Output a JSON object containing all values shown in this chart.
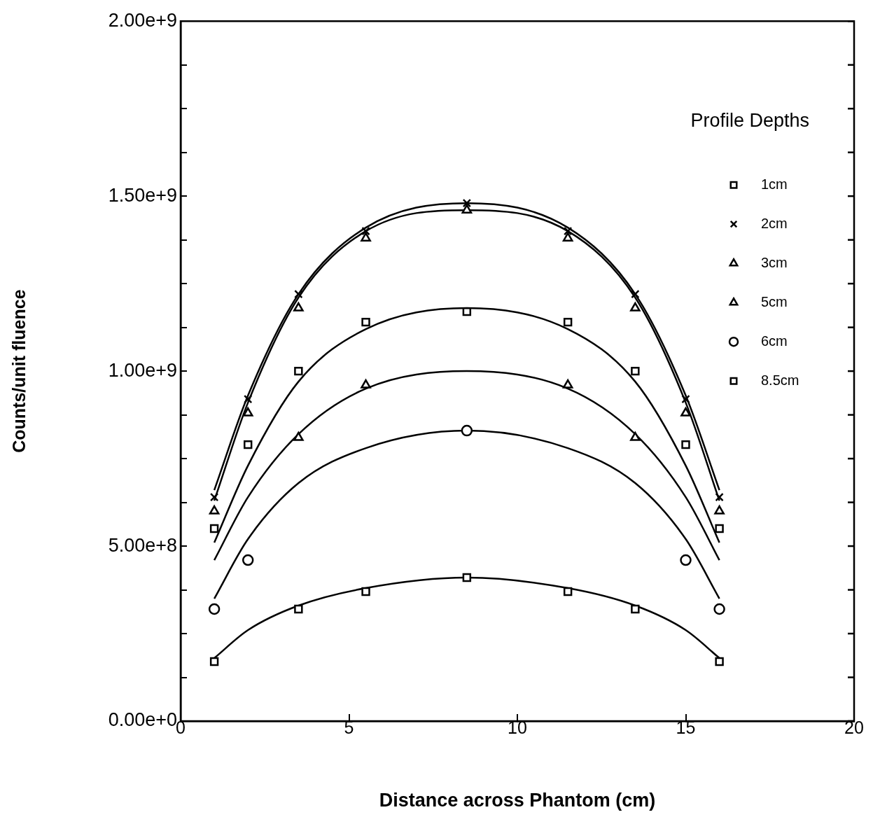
{
  "chart_data": {
    "type": "scatter",
    "xlabel": "Distance across Phantom (cm)",
    "ylabel": "Counts/unit fluence",
    "legend_title": "Profile Depths",
    "legend": "top right",
    "grid": false,
    "x": [
      1,
      2,
      3.5,
      5.5,
      8.5,
      11.5,
      13.5,
      15,
      16
    ],
    "xlim": [
      0,
      20
    ],
    "xticks": [
      0,
      5,
      10,
      15,
      20
    ],
    "ylim": [
      0,
      2000000000
    ],
    "yticks": [
      {
        "value": 0,
        "label": "0.00e+0"
      },
      {
        "value": 125000000,
        "label": null
      },
      {
        "value": 250000000,
        "label": null
      },
      {
        "value": 375000000,
        "label": null
      },
      {
        "value": 500000000,
        "label": "5.00e+8"
      },
      {
        "value": 625000000,
        "label": null
      },
      {
        "value": 750000000,
        "label": null
      },
      {
        "value": 875000000,
        "label": null
      },
      {
        "value": 1000000000,
        "label": "1.00e+9"
      },
      {
        "value": 1125000000,
        "label": null
      },
      {
        "value": 1250000000,
        "label": null
      },
      {
        "value": 1375000000,
        "label": null
      },
      {
        "value": 1500000000,
        "label": "1.50e+9"
      },
      {
        "value": 1625000000,
        "label": null
      },
      {
        "value": 1750000000,
        "label": null
      },
      {
        "value": 1875000000,
        "label": null
      },
      {
        "value": 2000000000,
        "label": "2.00e+9"
      }
    ],
    "series": [
      {
        "name": "1cm",
        "type": "scatter",
        "marker": "square",
        "color": "#000000",
        "values": [
          550000000,
          790000000,
          1000000000,
          1140000000,
          1170000000,
          1140000000,
          1000000000,
          790000000,
          550000000
        ]
      },
      {
        "name": "2cm",
        "type": "scatter",
        "marker": "cross",
        "color": "#000000",
        "values": [
          640000000,
          920000000,
          1220000000,
          1400000000,
          1480000000,
          1400000000,
          1220000000,
          920000000,
          640000000
        ]
      },
      {
        "name": "3cm",
        "type": "scatter",
        "marker": "triangle",
        "color": "#000000",
        "values": [
          600000000,
          880000000,
          1180000000,
          1380000000,
          1460000000,
          1380000000,
          1180000000,
          880000000,
          600000000
        ]
      },
      {
        "name": "5cm",
        "type": "scatter",
        "marker": "triangle",
        "color": "#000000",
        "values": [
          null,
          null,
          810000000,
          960000000,
          null,
          960000000,
          810000000,
          null,
          null
        ]
      },
      {
        "name": "6cm",
        "type": "scatter",
        "marker": "circle",
        "color": "#000000",
        "values": [
          320000000,
          460000000,
          null,
          null,
          830000000,
          null,
          null,
          460000000,
          320000000
        ]
      },
      {
        "name": "8.5cm",
        "type": "scatter",
        "marker": "square",
        "color": "#000000",
        "values": [
          170000000,
          null,
          320000000,
          370000000,
          410000000,
          370000000,
          320000000,
          null,
          170000000
        ]
      },
      {
        "type": "line",
        "marker": "none",
        "color": "#000000",
        "values": [
          510000000,
          730000000,
          970000000,
          1120000000,
          1180000000,
          1120000000,
          970000000,
          730000000,
          510000000
        ]
      },
      {
        "type": "line",
        "marker": "none",
        "color": "#000000",
        "values": [
          660000000,
          930000000,
          1220000000,
          1410000000,
          1480000000,
          1410000000,
          1220000000,
          930000000,
          660000000
        ]
      },
      {
        "type": "line",
        "marker": "none",
        "color": "#000000",
        "values": [
          630000000,
          910000000,
          1210000000,
          1400000000,
          1460000000,
          1400000000,
          1210000000,
          910000000,
          630000000
        ]
      },
      {
        "type": "line",
        "marker": "none",
        "color": "#000000",
        "values": [
          460000000,
          640000000,
          820000000,
          950000000,
          1000000000,
          950000000,
          820000000,
          640000000,
          460000000
        ]
      },
      {
        "type": "line",
        "marker": "none",
        "color": "#000000",
        "values": [
          350000000,
          520000000,
          680000000,
          780000000,
          830000000,
          780000000,
          680000000,
          520000000,
          350000000
        ]
      },
      {
        "type": "line",
        "marker": "none",
        "color": "#000000",
        "values": [
          180000000,
          260000000,
          330000000,
          380000000,
          410000000,
          380000000,
          330000000,
          260000000,
          180000000
        ]
      }
    ]
  }
}
